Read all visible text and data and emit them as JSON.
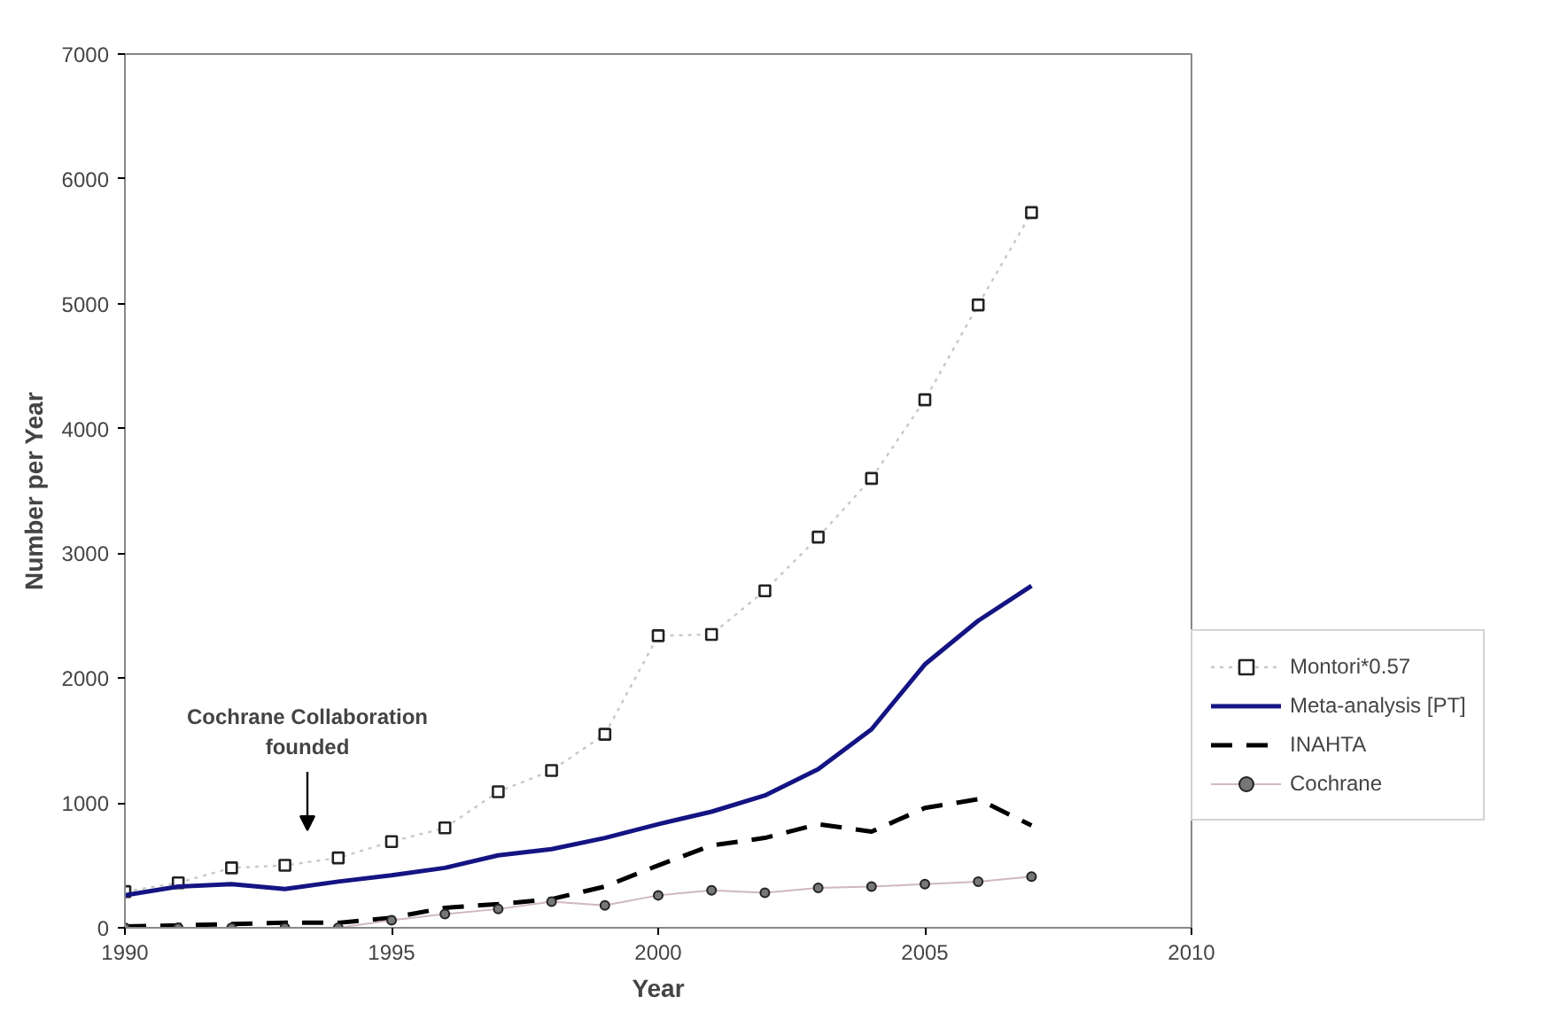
{
  "chart_data": {
    "type": "line",
    "xlabel": "Year",
    "ylabel": "Number per Year",
    "x": [
      1990,
      1991,
      1992,
      1993,
      1994,
      1995,
      1996,
      1997,
      1998,
      1999,
      2000,
      2001,
      2002,
      2003,
      2004,
      2005,
      2006,
      2007
    ],
    "xlim": [
      1990,
      2010
    ],
    "xticks": [
      1990,
      1995,
      2000,
      2005,
      2010
    ],
    "ylim": [
      0,
      7000
    ],
    "yticks": [
      0,
      1000,
      2000,
      3000,
      4000,
      5000,
      6000,
      7000
    ],
    "grid": false,
    "legend": "right",
    "series": [
      {
        "name": "Montori*0.57",
        "color": "#c8c8c8",
        "marker": "square",
        "line_style": "dotted",
        "values": [
          290,
          360,
          480,
          500,
          560,
          690,
          800,
          1090,
          1260,
          1550,
          2340,
          2350,
          2700,
          3130,
          3600,
          4230,
          4990,
          5730
        ]
      },
      {
        "name": "Meta-analysis [PT]",
        "color": "#141483",
        "marker": "none",
        "line_style": "solid",
        "values": [
          260,
          330,
          350,
          310,
          370,
          420,
          480,
          580,
          630,
          720,
          830,
          930,
          1060,
          1270,
          1590,
          2110,
          2460,
          2740
        ]
      },
      {
        "name": "INAHTA",
        "color": "#000000",
        "marker": "none",
        "line_style": "dashed",
        "values": [
          10,
          20,
          30,
          40,
          40,
          80,
          160,
          190,
          230,
          330,
          500,
          660,
          720,
          830,
          770,
          960,
          1030,
          820
        ]
      },
      {
        "name": "Cochrane",
        "color": "#d0b8c0",
        "marker": "circle",
        "line_style": "solid",
        "values": [
          0,
          0,
          0,
          0,
          0,
          60,
          110,
          150,
          210,
          180,
          260,
          300,
          280,
          320,
          330,
          350,
          370,
          410
        ]
      }
    ],
    "annotations": [
      "Cochrane Collaboration\nfounded"
    ]
  }
}
